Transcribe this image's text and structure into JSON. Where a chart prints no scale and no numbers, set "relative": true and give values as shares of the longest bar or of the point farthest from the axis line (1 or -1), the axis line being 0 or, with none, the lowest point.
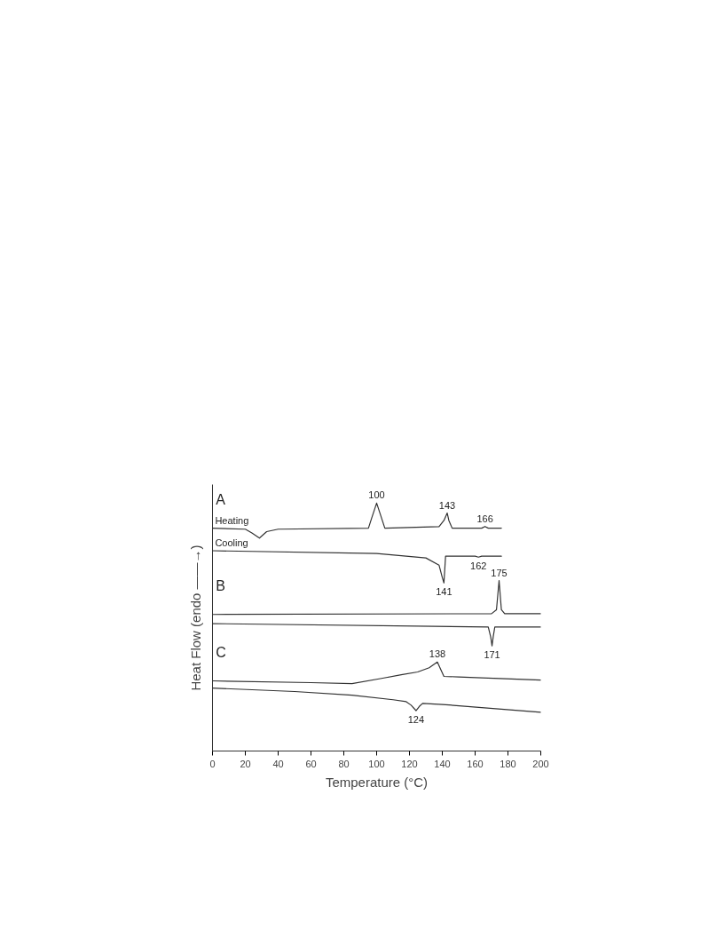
{
  "chart_data": {
    "type": "line",
    "relative": true,
    "xlabel": "Temperature (°C)",
    "ylabel": "Heat Flow (endo ——→)",
    "xlim": [
      0,
      200
    ],
    "xticks": [
      0,
      20,
      40,
      60,
      80,
      100,
      120,
      140,
      160,
      180,
      200
    ],
    "tick_labels": "x",
    "grid": false,
    "marker": "none",
    "line_style": "solid",
    "series": [
      {
        "name": "Heating",
        "color": "#333333",
        "x": [
          0,
          20,
          24,
          28.6,
          33,
          40,
          95,
          97,
          100,
          102,
          105,
          138,
          141,
          143,
          144,
          146,
          164,
          166,
          168,
          176
        ],
        "values": [
          0.899,
          0.895,
          0.88,
          0.859,
          0.885,
          0.895,
          0.899,
          0.94,
          1.0,
          0.96,
          0.899,
          0.905,
          0.93,
          0.96,
          0.93,
          0.899,
          0.899,
          0.906,
          0.899,
          0.899
        ]
      },
      {
        "name": "Cooling",
        "color": "#333333",
        "x": [
          0,
          100,
          130,
          138,
          140,
          141,
          142,
          150,
          160,
          162,
          164,
          176
        ],
        "values": [
          0.808,
          0.797,
          0.779,
          0.75,
          0.7,
          0.678,
          0.786,
          0.786,
          0.786,
          0.782,
          0.786,
          0.786
        ]
      },
      {
        "color": "#333333",
        "x": [
          0,
          170,
          173,
          174.6,
          176,
          178,
          200
        ],
        "values": [
          0.551,
          0.554,
          0.57,
          0.688,
          0.57,
          0.554,
          0.554
        ]
      },
      {
        "color": "#333333",
        "x": [
          0,
          168,
          169.5,
          170.3,
          171,
          172,
          200
        ],
        "values": [
          0.514,
          0.5,
          0.46,
          0.424,
          0.46,
          0.5,
          0.5
        ]
      },
      {
        "color": "#333333",
        "x": [
          0,
          60,
          85,
          103,
          115,
          125,
          132,
          137,
          139,
          141,
          150,
          200
        ],
        "values": [
          0.283,
          0.276,
          0.272,
          0.293,
          0.308,
          0.319,
          0.336,
          0.359,
          0.33,
          0.301,
          0.299,
          0.286
        ]
      },
      {
        "color": "#333333",
        "x": [
          0,
          50,
          85,
          110,
          118,
          121,
          124,
          126,
          128,
          140,
          200
        ],
        "values": [
          0.254,
          0.24,
          0.225,
          0.207,
          0.199,
          0.185,
          0.163,
          0.18,
          0.192,
          0.188,
          0.156
        ]
      }
    ],
    "annotations": [
      "A",
      "B",
      "C",
      {
        "text": "100",
        "x": 100,
        "y": 1.0
      },
      {
        "text": "143",
        "x": 143,
        "y": 0.96
      },
      {
        "text": "166",
        "x": 166,
        "y": 0.906
      },
      {
        "text": "141",
        "x": 141,
        "y": 0.678
      },
      {
        "text": "162",
        "x": 162,
        "y": 0.782
      },
      {
        "text": "175",
        "x": 174.6,
        "y": 0.688
      },
      {
        "text": "171",
        "x": 170.3,
        "y": 0.424
      },
      {
        "text": "138",
        "x": 137,
        "y": 0.359
      },
      {
        "text": "124",
        "x": 124,
        "y": 0.163
      }
    ]
  }
}
